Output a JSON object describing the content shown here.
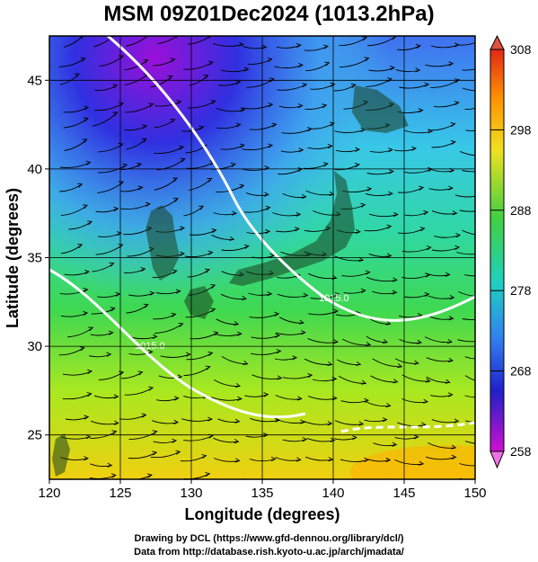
{
  "title": "MSM 09Z01Dec2024 (1013.2hPa)",
  "x_axis": {
    "label": "Longitude (degrees)",
    "ticks": [
      "120",
      "125",
      "130",
      "135",
      "140",
      "145",
      "150"
    ],
    "range": [
      120,
      150
    ]
  },
  "y_axis": {
    "label": "Latitude  (degrees)",
    "ticks": [
      "25",
      "30",
      "35",
      "40",
      "45"
    ],
    "range": [
      22.5,
      47.5
    ]
  },
  "colorbar": {
    "labels": [
      "308",
      "298",
      "288",
      "278",
      "268",
      "258"
    ],
    "min": 258,
    "max": 308
  },
  "contour_labels": [
    "1015.0",
    "1015.0"
  ],
  "credits": {
    "line1": "Drawing by DCL (https://www.gfd-dennou.org/library/dcl/)",
    "line2": "Data from http://database.rish.kyoto-u.ac.jp/arch/jmadata/"
  },
  "colors": {
    "cold": "#2a2adc",
    "cool": "#38c8d0",
    "mild": "#30d070",
    "warm": "#c8e820",
    "hot": "#ffb000",
    "land": "#000000",
    "contour": "#ffffff"
  }
}
